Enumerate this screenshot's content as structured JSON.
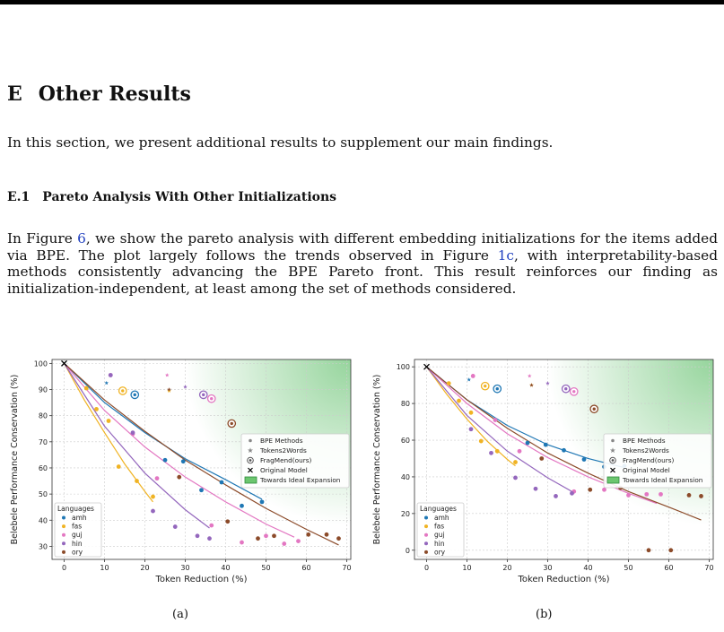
{
  "section": {
    "number": "E",
    "title": "Other Results"
  },
  "intro": "In this section, we present additional results to supplement our main findings.",
  "subsection": {
    "number": "E.1",
    "title": "Pareto Analysis With Other Initializations"
  },
  "paragraph": {
    "p1": "In Figure ",
    "ref1": "6",
    "p2": ", we show the pareto analysis with different embedding initializations for the items added via BPE. The plot largely follows the trends observed in Figure ",
    "ref2": "1c",
    "p3": ", with interpretability-based methods consistently advancing the BPE Pareto front. This result reinforces our finding as initialization-independent, at least among the set of methods considered."
  },
  "lang_colors": {
    "amh": "#1f77b4",
    "fas": "#f0b323",
    "guj": "#e377c2",
    "hin": "#9467bd",
    "ory": "#8c4b2a"
  },
  "chart_data": [
    {
      "type": "scatter",
      "caption": "(a)",
      "xlabel": "Token Reduction (%)",
      "ylabel": "Belebele Performance Conservation (%)",
      "xlim": [
        -3,
        71
      ],
      "ylim": [
        25,
        101.5
      ],
      "xticks": [
        0,
        10,
        20,
        30,
        40,
        50,
        60,
        70
      ],
      "yticks": [
        30,
        40,
        50,
        60,
        70,
        80,
        90,
        100
      ],
      "grid": true,
      "legend_languages": {
        "title": "Languages",
        "position": "lower-left",
        "items": [
          "amh",
          "fas",
          "guj",
          "hin",
          "ory"
        ]
      },
      "legend_methods": {
        "position": "center-right",
        "items": [
          "BPE Methods",
          "Tokens2Words",
          "FragMend(ours)",
          "Original Model",
          "Towards Ideal Expansion"
        ]
      },
      "original": {
        "x": 0,
        "y": 100
      },
      "series": [
        {
          "lang": "amh",
          "bpe": [
            [
              25,
              63
            ],
            [
              29.5,
              62.5
            ],
            [
              34,
              51.5
            ],
            [
              39,
              54.5
            ],
            [
              44,
              45.5
            ],
            [
              49,
              47
            ]
          ],
          "t2w": [
            [
              10.5,
              92.5
            ]
          ],
          "frag": [
            [
              17.5,
              88
            ]
          ],
          "curve": [
            [
              0,
              100
            ],
            [
              10,
              85
            ],
            [
              20,
              73.5
            ],
            [
              30,
              63.5
            ],
            [
              40,
              55.5
            ],
            [
              49,
              48
            ]
          ]
        },
        {
          "lang": "fas",
          "bpe": [
            [
              5.5,
              90.5
            ],
            [
              8,
              82.5
            ],
            [
              11,
              78
            ],
            [
              13.5,
              60.5
            ],
            [
              18,
              55
            ],
            [
              22,
              49
            ]
          ],
          "t2w": [
            [
              26,
              89.5
            ]
          ],
          "frag": [
            [
              14.5,
              89.5
            ]
          ],
          "curve": [
            [
              0,
              100
            ],
            [
              5,
              86
            ],
            [
              10,
              73.5
            ],
            [
              15,
              61.5
            ],
            [
              20,
              51
            ],
            [
              22,
              47
            ]
          ]
        },
        {
          "lang": "guj",
          "bpe": [
            [
              11.5,
              95.5
            ],
            [
              17,
              73
            ],
            [
              23,
              56
            ],
            [
              36.5,
              38
            ],
            [
              44,
              31.5
            ],
            [
              50,
              34
            ],
            [
              54.5,
              31
            ],
            [
              58,
              32
            ]
          ],
          "t2w": [
            [
              25.5,
              95.5
            ]
          ],
          "frag": [
            [
              36.5,
              86.5
            ]
          ],
          "curve": [
            [
              0,
              100
            ],
            [
              10,
              82
            ],
            [
              20,
              68
            ],
            [
              30,
              56.5
            ],
            [
              40,
              47
            ],
            [
              50,
              38.5
            ],
            [
              57,
              33.5
            ]
          ]
        },
        {
          "lang": "hin",
          "bpe": [
            [
              11.5,
              95.5
            ],
            [
              17,
              73.5
            ],
            [
              22,
              43.5
            ],
            [
              27.5,
              37.5
            ],
            [
              33,
              34
            ],
            [
              36,
              33
            ]
          ],
          "t2w": [
            [
              30,
              91
            ]
          ],
          "frag": [
            [
              34.5,
              88
            ]
          ],
          "curve": [
            [
              0,
              100
            ],
            [
              10,
              76
            ],
            [
              20,
              58
            ],
            [
              30,
              44
            ],
            [
              36,
              37
            ]
          ]
        },
        {
          "lang": "ory",
          "bpe": [
            [
              28.5,
              56.5
            ],
            [
              40.5,
              39.5
            ],
            [
              48,
              33
            ],
            [
              52,
              34
            ],
            [
              60.5,
              34.5
            ],
            [
              65,
              34.5
            ],
            [
              68,
              33
            ]
          ],
          "t2w": [
            [
              26,
              90
            ]
          ],
          "frag": [
            [
              41.5,
              77
            ]
          ],
          "curve": [
            [
              0,
              100
            ],
            [
              10,
              86
            ],
            [
              20,
              74
            ],
            [
              30,
              63
            ],
            [
              40,
              53.5
            ],
            [
              50,
              44.5
            ],
            [
              60,
              36.5
            ],
            [
              68,
              30.5
            ]
          ]
        }
      ]
    },
    {
      "type": "scatter",
      "caption": "(b)",
      "xlabel": "Token Reduction (%)",
      "ylabel": "Belebele Performance Conservation (%)",
      "xlim": [
        -3,
        71
      ],
      "ylim": [
        -5,
        104
      ],
      "xticks": [
        0,
        10,
        20,
        30,
        40,
        50,
        60,
        70
      ],
      "yticks": [
        0,
        20,
        40,
        60,
        80,
        100
      ],
      "grid": true,
      "legend_languages": {
        "title": "Languages",
        "position": "lower-left",
        "items": [
          "amh",
          "fas",
          "guj",
          "hin",
          "ory"
        ]
      },
      "legend_methods": {
        "position": "center-right",
        "items": [
          "BPE Methods",
          "Tokens2Words",
          "FragMend(ours)",
          "Original Model",
          "Towards Ideal Expansion"
        ]
      },
      "original": {
        "x": 0,
        "y": 100
      },
      "series": [
        {
          "lang": "amh",
          "bpe": [
            [
              25,
              58.5
            ],
            [
              29.5,
              57.5
            ],
            [
              34,
              54.5
            ],
            [
              39,
              49.5
            ],
            [
              44,
              45.5
            ],
            [
              49,
              46
            ]
          ],
          "t2w": [
            [
              10.5,
              93
            ]
          ],
          "frag": [
            [
              17.5,
              88
            ]
          ],
          "curve": [
            [
              0,
              100
            ],
            [
              10,
              82
            ],
            [
              20,
              68
            ],
            [
              30,
              57.5
            ],
            [
              40,
              50
            ],
            [
              49,
              45
            ]
          ]
        },
        {
          "lang": "fas",
          "bpe": [
            [
              5.5,
              91
            ],
            [
              8,
              81.5
            ],
            [
              11,
              75
            ],
            [
              13.5,
              59.5
            ],
            [
              17.5,
              54
            ],
            [
              22,
              48
            ]
          ],
          "t2w": [
            [
              26,
              90
            ]
          ],
          "frag": [
            [
              14.5,
              89.5
            ]
          ],
          "curve": [
            [
              0,
              100
            ],
            [
              5,
              85
            ],
            [
              10,
              71.5
            ],
            [
              15,
              59.5
            ],
            [
              20,
              49.5
            ],
            [
              22,
              46
            ]
          ]
        },
        {
          "lang": "guj",
          "bpe": [
            [
              11.5,
              95
            ],
            [
              17,
              71
            ],
            [
              23,
              54
            ],
            [
              36.5,
              32
            ],
            [
              44,
              33
            ],
            [
              50,
              30
            ],
            [
              54.5,
              30.5
            ],
            [
              58,
              30.5
            ]
          ],
          "t2w": [
            [
              25.5,
              95
            ]
          ],
          "frag": [
            [
              36.5,
              86.5
            ]
          ],
          "curve": [
            [
              0,
              100
            ],
            [
              10,
              80
            ],
            [
              20,
              63.5
            ],
            [
              30,
              50.5
            ],
            [
              40,
              40
            ],
            [
              50,
              31
            ],
            [
              57,
              25.5
            ]
          ]
        },
        {
          "lang": "hin",
          "bpe": [
            [
              11,
              66
            ],
            [
              16,
              53
            ],
            [
              22,
              39.5
            ],
            [
              27,
              33.5
            ],
            [
              32,
              29.5
            ],
            [
              36,
              31
            ]
          ],
          "t2w": [
            [
              30,
              91
            ]
          ],
          "frag": [
            [
              34.5,
              88
            ]
          ],
          "curve": [
            [
              0,
              100
            ],
            [
              10,
              73.5
            ],
            [
              20,
              54
            ],
            [
              30,
              39.5
            ],
            [
              36,
              32
            ]
          ]
        },
        {
          "lang": "ory",
          "bpe": [
            [
              28.5,
              50
            ],
            [
              40.5,
              33
            ],
            [
              48,
              34
            ],
            [
              55,
              0
            ],
            [
              60.5,
              0
            ],
            [
              65,
              30
            ],
            [
              68,
              29.5
            ]
          ],
          "t2w": [
            [
              26,
              90
            ]
          ],
          "frag": [
            [
              41.5,
              77
            ]
          ],
          "curve": [
            [
              0,
              100
            ],
            [
              10,
              82
            ],
            [
              20,
              66.5
            ],
            [
              30,
              53
            ],
            [
              40,
              42
            ],
            [
              50,
              32
            ],
            [
              60,
              23.5
            ],
            [
              68,
              16.5
            ]
          ]
        }
      ]
    }
  ]
}
